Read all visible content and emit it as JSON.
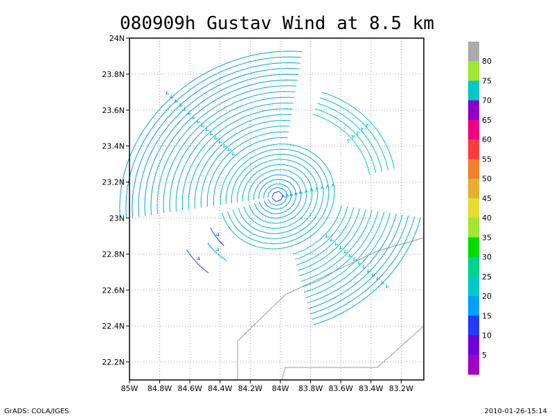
{
  "chart_data": {
    "type": "vector-streamline",
    "title": "080909h Gustav Wind at 8.5 km",
    "x_ticks": [
      "85W",
      "84.8W",
      "84.6W",
      "84.4W",
      "84.2W",
      "84W",
      "83.8W",
      "83.6W",
      "83.4W",
      "83.2W"
    ],
    "x_tick_values": [
      -85.0,
      -84.8,
      -84.6,
      -84.4,
      -84.2,
      -84.0,
      -83.8,
      -83.6,
      -83.4,
      -83.2
    ],
    "y_ticks": [
      "22.2N",
      "22.4N",
      "22.6N",
      "22.8N",
      "23N",
      "23.2N",
      "23.4N",
      "23.6N",
      "23.8N",
      "24N"
    ],
    "y_tick_values": [
      22.2,
      22.4,
      22.6,
      22.8,
      23.0,
      23.2,
      23.4,
      23.6,
      23.8,
      24.0
    ],
    "xlim": [
      -85.0,
      -83.05
    ],
    "ylim": [
      22.1,
      24.0
    ],
    "grid": true,
    "vortex_center": {
      "lon": -84.02,
      "lat": 23.12
    },
    "colorbar": {
      "labels": [
        "5",
        "10",
        "15",
        "20",
        "25",
        "30",
        "35",
        "40",
        "45",
        "50",
        "55",
        "60",
        "65",
        "70",
        "75",
        "80"
      ],
      "colors": [
        "#a000c8",
        "#6e00dc",
        "#1e3cff",
        "#00a0ff",
        "#00c8c8",
        "#00d28c",
        "#00dc00",
        "#a0e632",
        "#e6dc32",
        "#e6af2d",
        "#f08228",
        "#fa3c3c",
        "#f00082",
        "#8c00c8",
        "#00c8c8",
        "#a0e632",
        "#aaaaaa"
      ]
    }
  },
  "footer": {
    "left": "GrADS: COLA/IGES",
    "right": "2010-01-26-15:14"
  }
}
